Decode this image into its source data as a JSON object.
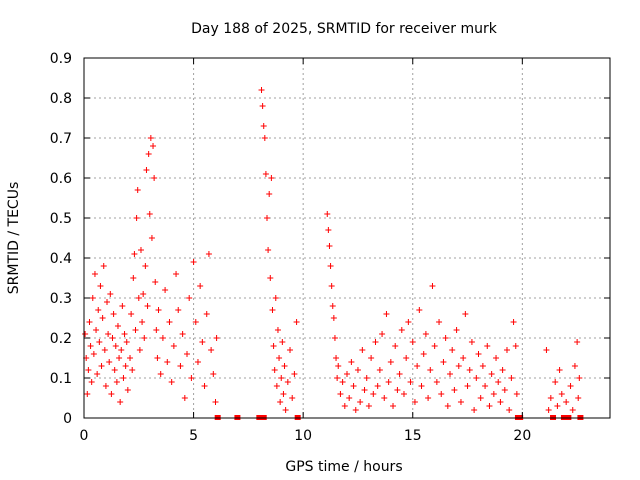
{
  "chart_data": {
    "type": "scatter",
    "title": "Day 188 of 2025, SRMTID for receiver murk",
    "xlabel": "GPS time / hours",
    "ylabel": "SRMTID / TECUs",
    "xlim": [
      0,
      24
    ],
    "ylim": [
      0,
      0.9
    ],
    "x_ticks": [
      "0",
      "5",
      "10",
      "15",
      "20"
    ],
    "y_ticks": [
      "0",
      "0.1",
      "0.2",
      "0.3",
      "0.4",
      "0.5",
      "0.6",
      "0.7",
      "0.8",
      "0.9"
    ],
    "grid": true,
    "marker": "plus",
    "color": "#ff0000",
    "series": [
      {
        "points": [
          [
            0.05,
            0.21
          ],
          [
            0.1,
            0.15
          ],
          [
            0.15,
            0.06
          ],
          [
            0.2,
            0.12
          ],
          [
            0.25,
            0.24
          ],
          [
            0.3,
            0.18
          ],
          [
            0.35,
            0.09
          ],
          [
            0.4,
            0.3
          ],
          [
            0.45,
            0.16
          ],
          [
            0.5,
            0.36
          ],
          [
            0.55,
            0.22
          ],
          [
            0.6,
            0.11
          ],
          [
            0.65,
            0.27
          ],
          [
            0.7,
            0.19
          ],
          [
            0.75,
            0.33
          ],
          [
            0.8,
            0.13
          ],
          [
            0.85,
            0.25
          ],
          [
            0.9,
            0.38
          ],
          [
            0.95,
            0.17
          ],
          [
            1.0,
            0.08
          ],
          [
            1.05,
            0.29
          ],
          [
            1.1,
            0.21
          ],
          [
            1.15,
            0.14
          ],
          [
            1.2,
            0.31
          ],
          [
            1.25,
            0.06
          ],
          [
            1.3,
            0.2
          ],
          [
            1.35,
            0.26
          ],
          [
            1.4,
            0.12
          ],
          [
            1.45,
            0.18
          ],
          [
            1.5,
            0.09
          ],
          [
            1.55,
            0.23
          ],
          [
            1.6,
            0.15
          ],
          [
            1.65,
            0.04
          ],
          [
            1.7,
            0.17
          ],
          [
            1.75,
            0.28
          ],
          [
            1.8,
            0.1
          ],
          [
            1.85,
            0.21
          ],
          [
            1.9,
            0.13
          ],
          [
            1.95,
            0.19
          ],
          [
            2.0,
            0.07
          ],
          [
            2.1,
            0.15
          ],
          [
            2.15,
            0.26
          ],
          [
            2.2,
            0.12
          ],
          [
            2.25,
            0.35
          ],
          [
            2.3,
            0.41
          ],
          [
            2.35,
            0.22
          ],
          [
            2.4,
            0.5
          ],
          [
            2.45,
            0.57
          ],
          [
            2.5,
            0.3
          ],
          [
            2.55,
            0.17
          ],
          [
            2.6,
            0.42
          ],
          [
            2.65,
            0.24
          ],
          [
            2.7,
            0.31
          ],
          [
            2.75,
            0.2
          ],
          [
            2.8,
            0.38
          ],
          [
            2.85,
            0.62
          ],
          [
            2.9,
            0.28
          ],
          [
            2.95,
            0.66
          ],
          [
            3.0,
            0.51
          ],
          [
            3.05,
            0.7
          ],
          [
            3.1,
            0.45
          ],
          [
            3.15,
            0.68
          ],
          [
            3.2,
            0.6
          ],
          [
            3.25,
            0.34
          ],
          [
            3.3,
            0.22
          ],
          [
            3.35,
            0.15
          ],
          [
            3.4,
            0.27
          ],
          [
            3.5,
            0.11
          ],
          [
            3.6,
            0.2
          ],
          [
            3.7,
            0.32
          ],
          [
            3.8,
            0.14
          ],
          [
            3.9,
            0.24
          ],
          [
            4.0,
            0.09
          ],
          [
            4.1,
            0.18
          ],
          [
            4.2,
            0.36
          ],
          [
            4.3,
            0.27
          ],
          [
            4.4,
            0.13
          ],
          [
            4.5,
            0.21
          ],
          [
            4.6,
            0.05
          ],
          [
            4.7,
            0.16
          ],
          [
            4.8,
            0.3
          ],
          [
            4.9,
            0.1
          ],
          [
            5.0,
            0.39
          ],
          [
            5.1,
            0.24
          ],
          [
            5.2,
            0.14
          ],
          [
            5.3,
            0.33
          ],
          [
            5.4,
            0.19
          ],
          [
            5.5,
            0.08
          ],
          [
            5.6,
            0.26
          ],
          [
            5.7,
            0.41
          ],
          [
            5.8,
            0.17
          ],
          [
            5.9,
            0.11
          ],
          [
            6.0,
            0.04
          ],
          [
            6.05,
            0.2
          ],
          [
            6.1,
            0.0
          ],
          [
            7.0,
            0.0
          ],
          [
            8.0,
            0.0
          ],
          [
            8.2,
            0.0
          ],
          [
            8.1,
            0.82
          ],
          [
            8.15,
            0.78
          ],
          [
            8.2,
            0.73
          ],
          [
            8.25,
            0.7
          ],
          [
            8.3,
            0.61
          ],
          [
            8.35,
            0.5
          ],
          [
            8.4,
            0.42
          ],
          [
            8.45,
            0.56
          ],
          [
            8.5,
            0.35
          ],
          [
            8.55,
            0.6
          ],
          [
            8.6,
            0.27
          ],
          [
            8.65,
            0.18
          ],
          [
            8.7,
            0.12
          ],
          [
            8.75,
            0.3
          ],
          [
            8.8,
            0.08
          ],
          [
            8.85,
            0.22
          ],
          [
            8.9,
            0.15
          ],
          [
            8.95,
            0.04
          ],
          [
            9.0,
            0.1
          ],
          [
            9.05,
            0.19
          ],
          [
            9.1,
            0.06
          ],
          [
            9.15,
            0.13
          ],
          [
            9.2,
            0.02
          ],
          [
            9.3,
            0.09
          ],
          [
            9.4,
            0.17
          ],
          [
            9.5,
            0.05
          ],
          [
            9.6,
            0.11
          ],
          [
            9.7,
            0.24
          ],
          [
            9.75,
            0.0
          ],
          [
            11.1,
            0.51
          ],
          [
            11.15,
            0.47
          ],
          [
            11.2,
            0.43
          ],
          [
            11.25,
            0.38
          ],
          [
            11.3,
            0.33
          ],
          [
            11.35,
            0.28
          ],
          [
            11.4,
            0.25
          ],
          [
            11.45,
            0.2
          ],
          [
            11.5,
            0.15
          ],
          [
            11.55,
            0.1
          ],
          [
            11.6,
            0.13
          ],
          [
            11.7,
            0.06
          ],
          [
            11.8,
            0.09
          ],
          [
            11.9,
            0.03
          ],
          [
            12.0,
            0.11
          ],
          [
            12.1,
            0.05
          ],
          [
            12.2,
            0.14
          ],
          [
            12.3,
            0.08
          ],
          [
            12.4,
            0.02
          ],
          [
            12.5,
            0.12
          ],
          [
            12.6,
            0.04
          ],
          [
            12.7,
            0.17
          ],
          [
            12.8,
            0.07
          ],
          [
            12.9,
            0.1
          ],
          [
            13.0,
            0.03
          ],
          [
            13.1,
            0.15
          ],
          [
            13.2,
            0.06
          ],
          [
            13.3,
            0.19
          ],
          [
            13.4,
            0.08
          ],
          [
            13.5,
            0.12
          ],
          [
            13.6,
            0.21
          ],
          [
            13.7,
            0.05
          ],
          [
            13.8,
            0.26
          ],
          [
            13.9,
            0.09
          ],
          [
            14.0,
            0.14
          ],
          [
            14.1,
            0.03
          ],
          [
            14.2,
            0.18
          ],
          [
            14.3,
            0.07
          ],
          [
            14.4,
            0.11
          ],
          [
            14.5,
            0.22
          ],
          [
            14.6,
            0.06
          ],
          [
            14.7,
            0.15
          ],
          [
            14.8,
            0.24
          ],
          [
            14.9,
            0.09
          ],
          [
            15.0,
            0.19
          ],
          [
            15.1,
            0.04
          ],
          [
            15.2,
            0.13
          ],
          [
            15.3,
            0.27
          ],
          [
            15.4,
            0.08
          ],
          [
            15.5,
            0.16
          ],
          [
            15.6,
            0.21
          ],
          [
            15.7,
            0.05
          ],
          [
            15.8,
            0.12
          ],
          [
            15.9,
            0.33
          ],
          [
            16.0,
            0.18
          ],
          [
            16.1,
            0.09
          ],
          [
            16.2,
            0.24
          ],
          [
            16.3,
            0.06
          ],
          [
            16.4,
            0.14
          ],
          [
            16.5,
            0.2
          ],
          [
            16.6,
            0.03
          ],
          [
            16.7,
            0.11
          ],
          [
            16.8,
            0.17
          ],
          [
            16.9,
            0.07
          ],
          [
            17.0,
            0.22
          ],
          [
            17.1,
            0.13
          ],
          [
            17.2,
            0.04
          ],
          [
            17.3,
            0.15
          ],
          [
            17.4,
            0.26
          ],
          [
            17.5,
            0.08
          ],
          [
            17.6,
            0.12
          ],
          [
            17.7,
            0.19
          ],
          [
            17.8,
            0.02
          ],
          [
            17.9,
            0.1
          ],
          [
            18.0,
            0.16
          ],
          [
            18.1,
            0.05
          ],
          [
            18.2,
            0.13
          ],
          [
            18.3,
            0.08
          ],
          [
            18.4,
            0.18
          ],
          [
            18.5,
            0.03
          ],
          [
            18.6,
            0.11
          ],
          [
            18.7,
            0.06
          ],
          [
            18.8,
            0.15
          ],
          [
            18.9,
            0.09
          ],
          [
            19.0,
            0.04
          ],
          [
            19.1,
            0.12
          ],
          [
            19.2,
            0.07
          ],
          [
            19.3,
            0.17
          ],
          [
            19.4,
            0.02
          ],
          [
            19.5,
            0.1
          ],
          [
            19.6,
            0.24
          ],
          [
            19.7,
            0.18
          ],
          [
            19.75,
            0.06
          ],
          [
            19.8,
            0.0
          ],
          [
            19.9,
            0.0
          ],
          [
            21.1,
            0.17
          ],
          [
            21.2,
            0.02
          ],
          [
            21.3,
            0.05
          ],
          [
            21.4,
            0.0
          ],
          [
            21.5,
            0.09
          ],
          [
            21.6,
            0.03
          ],
          [
            21.7,
            0.12
          ],
          [
            21.8,
            0.06
          ],
          [
            21.9,
            0.0
          ],
          [
            22.0,
            0.04
          ],
          [
            22.1,
            0.0
          ],
          [
            22.2,
            0.08
          ],
          [
            22.3,
            0.02
          ],
          [
            22.4,
            0.13
          ],
          [
            22.5,
            0.19
          ],
          [
            22.55,
            0.05
          ],
          [
            22.6,
            0.1
          ],
          [
            22.65,
            0.0
          ]
        ]
      }
    ]
  }
}
